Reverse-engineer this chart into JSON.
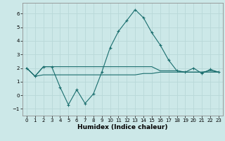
{
  "xlabel": "Humidex (Indice chaleur)",
  "xlim": [
    -0.5,
    23.5
  ],
  "ylim": [
    -1.5,
    6.8
  ],
  "yticks": [
    -1,
    0,
    1,
    2,
    3,
    4,
    5,
    6
  ],
  "xticks": [
    0,
    1,
    2,
    3,
    4,
    5,
    6,
    7,
    8,
    9,
    10,
    11,
    12,
    13,
    14,
    15,
    16,
    17,
    18,
    19,
    20,
    21,
    22,
    23
  ],
  "bg_color": "#cce8e8",
  "grid_color": "#b8d8d8",
  "line_color": "#1a6e6e",
  "line1_x": [
    0,
    1,
    2,
    3,
    4,
    5,
    6,
    7,
    8,
    9,
    10,
    11,
    12,
    13,
    14,
    15,
    16,
    17,
    18,
    19,
    20,
    21,
    22,
    23
  ],
  "line1_y": [
    2.0,
    1.4,
    2.1,
    2.1,
    0.6,
    -0.7,
    0.4,
    -0.6,
    0.1,
    1.7,
    3.5,
    4.7,
    5.5,
    6.3,
    5.7,
    4.6,
    3.7,
    2.6,
    1.8,
    1.7,
    2.0,
    1.6,
    1.9,
    1.7
  ],
  "line2_x": [
    0,
    1,
    2,
    3,
    4,
    5,
    6,
    7,
    8,
    9,
    10,
    11,
    12,
    13,
    14,
    15,
    16,
    17,
    18,
    19,
    20,
    21,
    22,
    23
  ],
  "line2_y": [
    2.0,
    1.4,
    2.1,
    2.1,
    2.1,
    2.1,
    2.1,
    2.1,
    2.1,
    2.1,
    2.1,
    2.1,
    2.1,
    2.1,
    2.1,
    2.1,
    1.8,
    1.8,
    1.8,
    1.7,
    1.7,
    1.7,
    1.8,
    1.7
  ],
  "line3_x": [
    0,
    1,
    2,
    3,
    4,
    5,
    6,
    7,
    8,
    9,
    10,
    11,
    12,
    13,
    14,
    15,
    16,
    17,
    18,
    19,
    20,
    21,
    22,
    23
  ],
  "line3_y": [
    2.0,
    1.4,
    1.5,
    1.5,
    1.5,
    1.5,
    1.5,
    1.5,
    1.5,
    1.5,
    1.5,
    1.5,
    1.5,
    1.5,
    1.6,
    1.6,
    1.7,
    1.7,
    1.7,
    1.7,
    1.7,
    1.7,
    1.7,
    1.7
  ],
  "xlabel_fontsize": 6.5,
  "tick_fontsize": 5.0
}
